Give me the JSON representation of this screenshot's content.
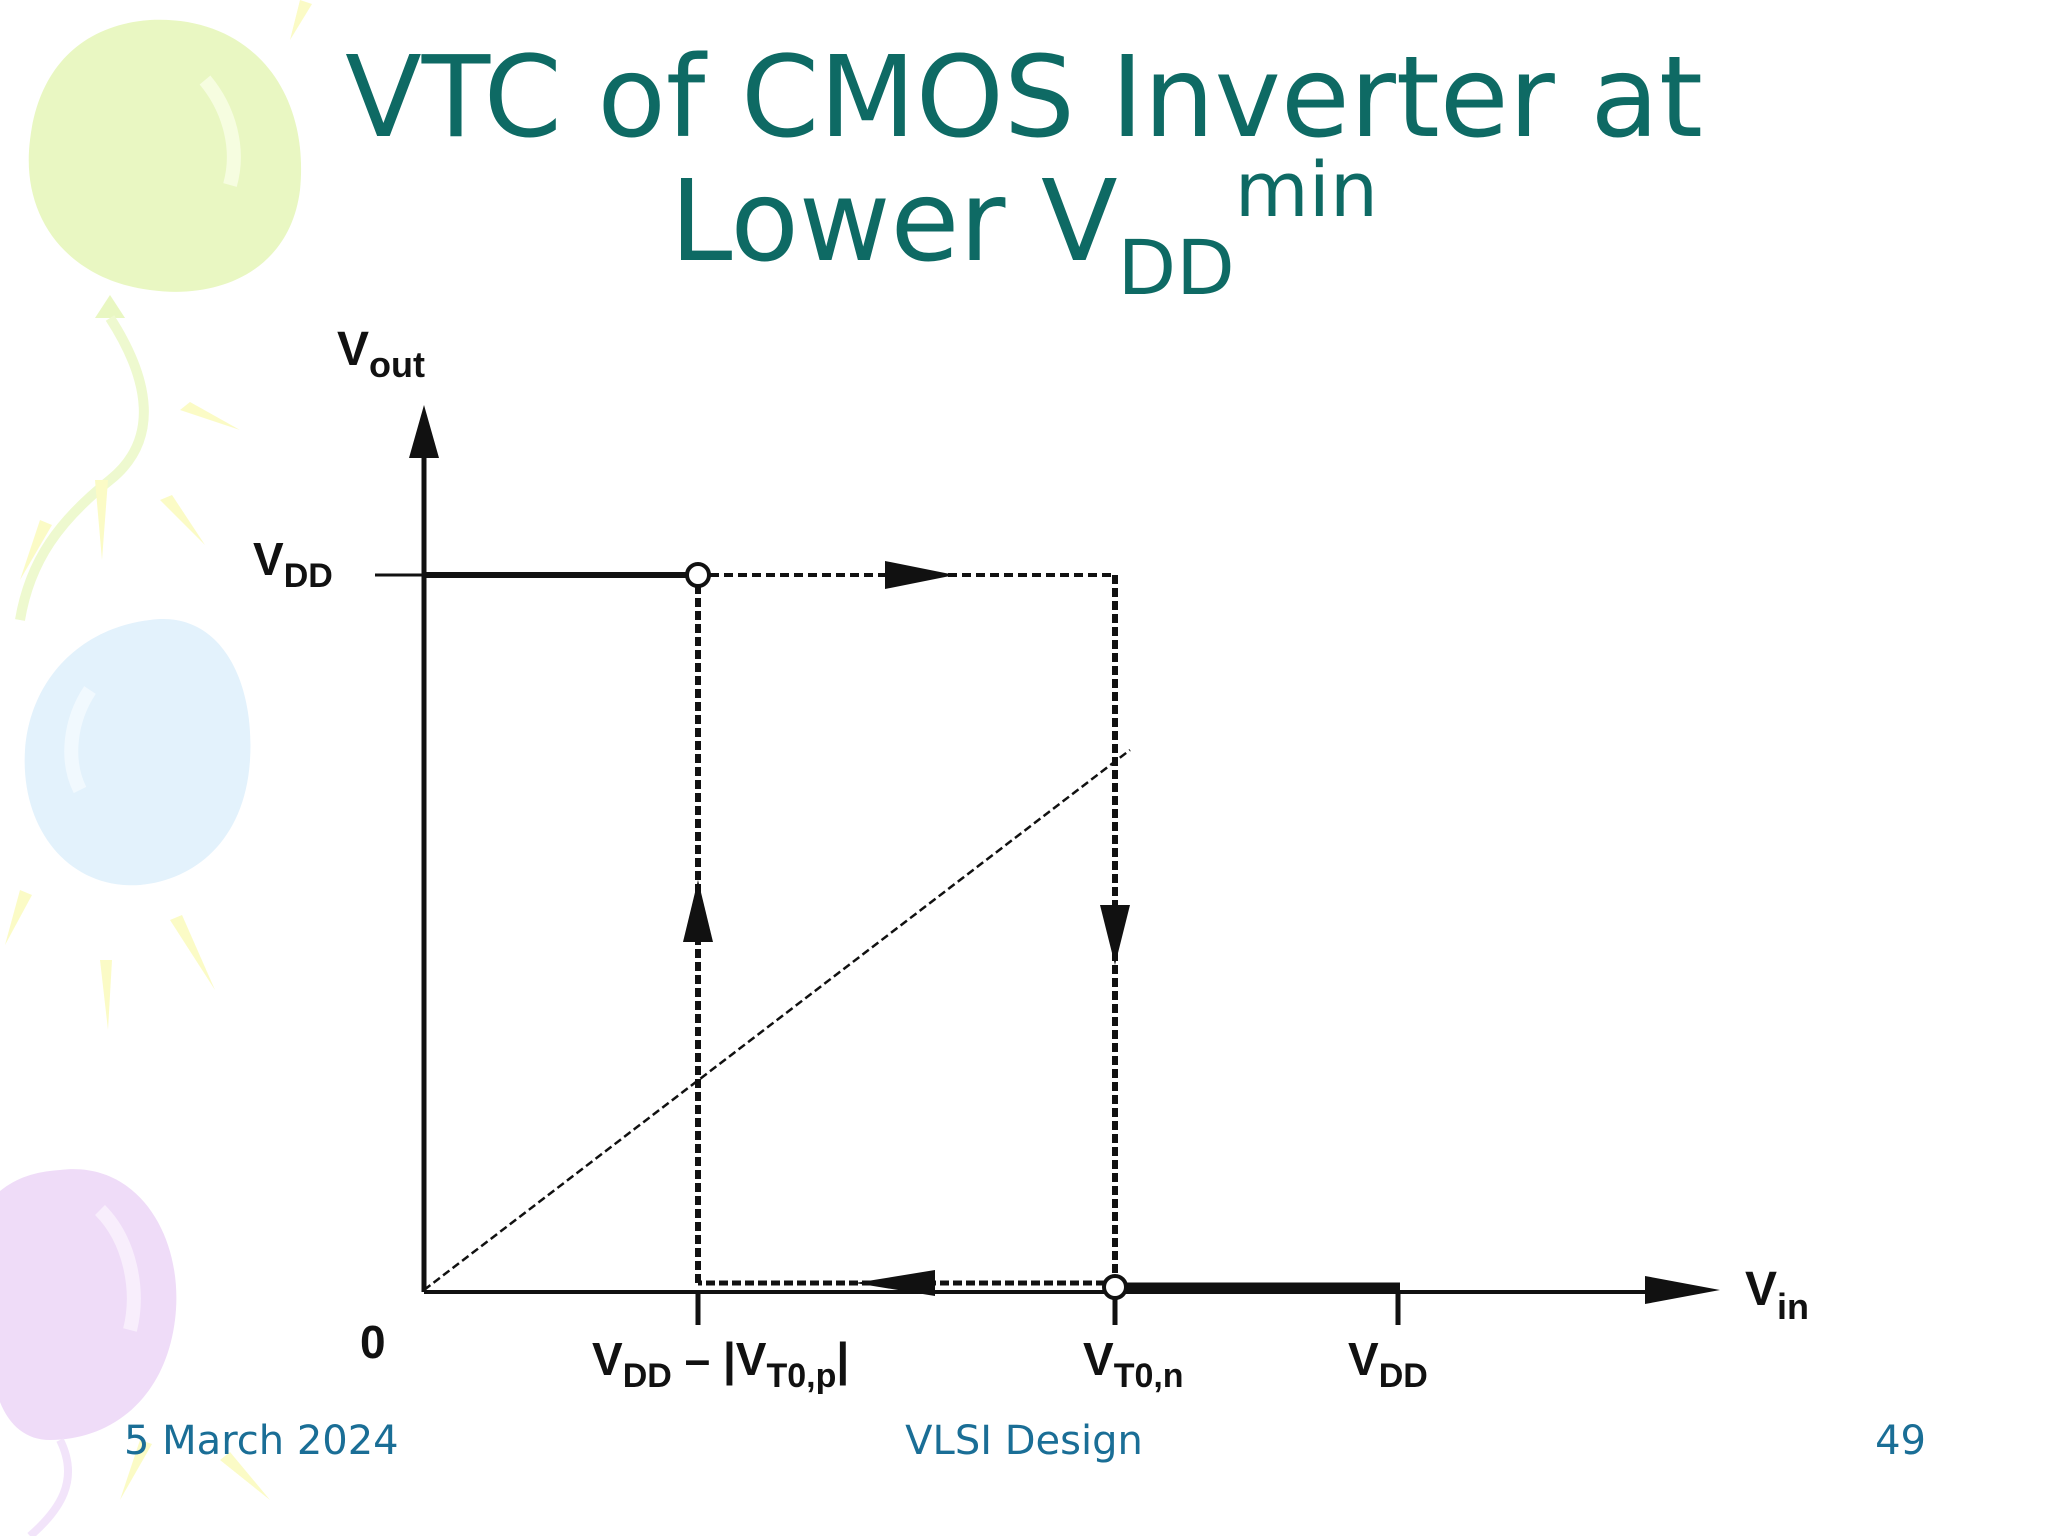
{
  "title": {
    "line1": "VTC of CMOS Inverter at",
    "line2_main": "Lower V",
    "line2_sub": "DD",
    "line2_sup": "min"
  },
  "diagram": {
    "y_axis_label": {
      "main": "V",
      "sub": "out"
    },
    "x_axis_label": {
      "main": "V",
      "sub": "in"
    },
    "y_tick_vdd": {
      "main": "V",
      "sub": "DD"
    },
    "origin_label": "0",
    "x_tick_1": {
      "main": "V",
      "sub": "DD",
      "rest": " – |V",
      "sub2": "T0,p",
      "tail": "|"
    },
    "x_tick_2": {
      "main": "V",
      "sub": "T0,n"
    },
    "x_tick_3": {
      "main": "V",
      "sub": "DD"
    }
  },
  "footer": {
    "date": "5 March 2024",
    "center": "VLSI Design",
    "page": "49"
  },
  "colors": {
    "title": "#0e6a64",
    "footer": "#1a6e96",
    "balloon_green": "#e9f7c2",
    "balloon_blue": "#e3f2fc",
    "balloon_purple": "#efdcf8",
    "sunray": "#fbfbc6"
  }
}
